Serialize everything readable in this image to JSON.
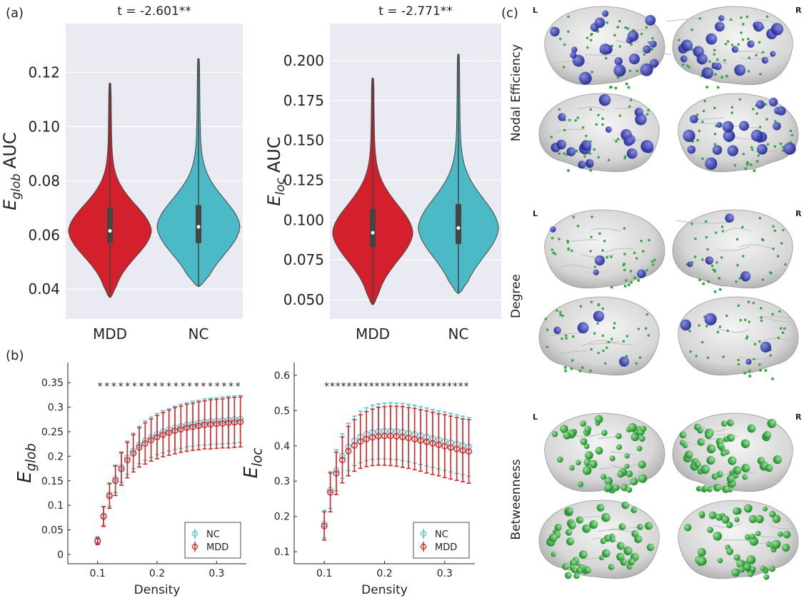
{
  "panel_labels": [
    "(a)",
    "(b)",
    "(c)"
  ],
  "chart_data": [
    {
      "type": "violin",
      "title": "t = -2.601**",
      "ylabel": [
        "E",
        "glob",
        "AUC"
      ],
      "categories": [
        "MDD",
        "NC"
      ],
      "boxes": [
        {
          "color": "#d41f2d",
          "min": 0.037,
          "q1": 0.057,
          "median": 0.0615,
          "q3": 0.07,
          "max": 0.116
        },
        {
          "color": "#4bbac6",
          "min": 0.041,
          "q1": 0.057,
          "median": 0.063,
          "q3": 0.071,
          "max": 0.125
        }
      ],
      "ylim": [
        0.029,
        0.138
      ],
      "yticks": [
        0.04,
        0.06,
        0.08,
        {
          "value": 0.1,
          "label": "0.10"
        },
        0.12
      ],
      "grid": true
    },
    {
      "type": "violin",
      "title": "t = -2.771**",
      "ylabel": [
        "E",
        "loc",
        "AUC"
      ],
      "categories": [
        "MDD",
        "NC"
      ],
      "boxes": [
        {
          "color": "#d41f2d",
          "min": 0.047,
          "q1": 0.083,
          "median": 0.092,
          "q3": 0.107,
          "max": 0.189
        },
        {
          "color": "#4bbac6",
          "min": 0.054,
          "q1": 0.085,
          "median": 0.095,
          "q3": 0.11,
          "max": 0.204
        }
      ],
      "ylim": [
        0.0379,
        0.2233
      ],
      "yticks": [
        {
          "value": 0.05,
          "label": "0.050"
        },
        0.075,
        {
          "value": 0.1,
          "label": "0.100"
        },
        0.125,
        {
          "value": 0.15,
          "label": "0.150"
        },
        0.175,
        {
          "value": 0.2,
          "label": "0.200"
        }
      ],
      "grid": true
    },
    {
      "type": "errorbar",
      "xlabel": "Density",
      "ylabel": [
        "E",
        "glob"
      ],
      "annotation": "*********************",
      "legend": "lower right",
      "x": [
        0.1,
        0.11,
        0.12,
        0.13,
        0.14,
        0.15,
        0.16,
        0.17,
        0.18,
        0.19,
        0.2,
        0.21,
        0.22,
        0.23,
        0.24,
        0.25,
        0.26,
        0.27,
        0.28,
        0.29,
        0.3,
        0.31,
        0.32,
        0.33,
        0.34
      ],
      "series": [
        {
          "name": "NC",
          "color": "#5bc3d6",
          "values": [
            0.029,
            0.079,
            0.122,
            0.154,
            0.178,
            0.197,
            0.211,
            0.223,
            0.232,
            0.239,
            0.245,
            0.25,
            0.254,
            0.258,
            0.261,
            0.264,
            0.266,
            0.268,
            0.27,
            0.271,
            0.272,
            0.273,
            0.274,
            0.275,
            0.276
          ],
          "errors": [
            0.007,
            0.019,
            0.024,
            0.028,
            0.031,
            0.034,
            0.036,
            0.038,
            0.04,
            0.041,
            0.042,
            0.043,
            0.043,
            0.044,
            0.045,
            0.045,
            0.046,
            0.046,
            0.047,
            0.047,
            0.047,
            0.048,
            0.048,
            0.048,
            0.048
          ]
        },
        {
          "name": "MDD",
          "color": "#d62728",
          "values": [
            0.027,
            0.077,
            0.119,
            0.15,
            0.174,
            0.192,
            0.206,
            0.218,
            0.226,
            0.233,
            0.239,
            0.244,
            0.248,
            0.252,
            0.255,
            0.258,
            0.26,
            0.262,
            0.264,
            0.265,
            0.266,
            0.267,
            0.268,
            0.269,
            0.27
          ],
          "errors": [
            0.007,
            0.02,
            0.025,
            0.03,
            0.033,
            0.036,
            0.038,
            0.04,
            0.042,
            0.043,
            0.044,
            0.045,
            0.046,
            0.047,
            0.047,
            0.048,
            0.048,
            0.049,
            0.049,
            0.05,
            0.05,
            0.05,
            0.051,
            0.051,
            0.051
          ]
        }
      ],
      "xlim": [
        0.05,
        0.35
      ],
      "xticks": [
        0.1,
        0.2,
        0.3
      ],
      "ylim": [
        -0.019,
        0.391
      ],
      "yticks": [
        0,
        0.05,
        0.1,
        0.15,
        0.2,
        0.25,
        0.3,
        0.35
      ]
    },
    {
      "type": "errorbar",
      "xlabel": "Density",
      "ylabel": [
        "E",
        "loc"
      ],
      "annotation": "**************************",
      "legend": "lower right",
      "x": [
        0.1,
        0.11,
        0.12,
        0.13,
        0.14,
        0.15,
        0.16,
        0.17,
        0.18,
        0.19,
        0.2,
        0.21,
        0.22,
        0.23,
        0.24,
        0.25,
        0.26,
        0.27,
        0.28,
        0.29,
        0.3,
        0.31,
        0.32,
        0.33,
        0.34
      ],
      "series": [
        {
          "name": "NC",
          "color": "#5bc3d6",
          "values": [
            0.178,
            0.275,
            0.331,
            0.371,
            0.397,
            0.414,
            0.425,
            0.433,
            0.438,
            0.441,
            0.442,
            0.442,
            0.441,
            0.439,
            0.436,
            0.433,
            0.429,
            0.425,
            0.421,
            0.417,
            0.413,
            0.409,
            0.405,
            0.401,
            0.397
          ],
          "errors": [
            0.039,
            0.052,
            0.058,
            0.063,
            0.067,
            0.07,
            0.073,
            0.075,
            0.077,
            0.078,
            0.079,
            0.08,
            0.08,
            0.081,
            0.081,
            0.082,
            0.082,
            0.082,
            0.082,
            0.082,
            0.083,
            0.083,
            0.083,
            0.083,
            0.083
          ]
        },
        {
          "name": "MDD",
          "color": "#d62728",
          "values": [
            0.173,
            0.268,
            0.322,
            0.36,
            0.385,
            0.401,
            0.412,
            0.419,
            0.424,
            0.427,
            0.428,
            0.428,
            0.427,
            0.425,
            0.422,
            0.419,
            0.415,
            0.411,
            0.407,
            0.403,
            0.399,
            0.395,
            0.391,
            0.387,
            0.384
          ],
          "errors": [
            0.04,
            0.055,
            0.06,
            0.065,
            0.07,
            0.073,
            0.076,
            0.078,
            0.08,
            0.082,
            0.083,
            0.084,
            0.085,
            0.086,
            0.086,
            0.087,
            0.087,
            0.088,
            0.088,
            0.088,
            0.089,
            0.089,
            0.089,
            0.089,
            0.09
          ]
        }
      ],
      "xlim": [
        0.05,
        0.35
      ],
      "xticks": [
        0.1,
        0.2,
        0.3
      ],
      "ylim": [
        0.066,
        0.636
      ],
      "yticks": [
        0.1,
        0.2,
        0.3,
        0.4,
        0.5,
        0.6
      ]
    }
  ],
  "brain_maps": {
    "hemispheres": [
      "L",
      "R"
    ],
    "rows": [
      {
        "label": "Nodal Efficiency"
      },
      {
        "label": "Degree"
      },
      {
        "label": "Betweenness"
      }
    ]
  }
}
